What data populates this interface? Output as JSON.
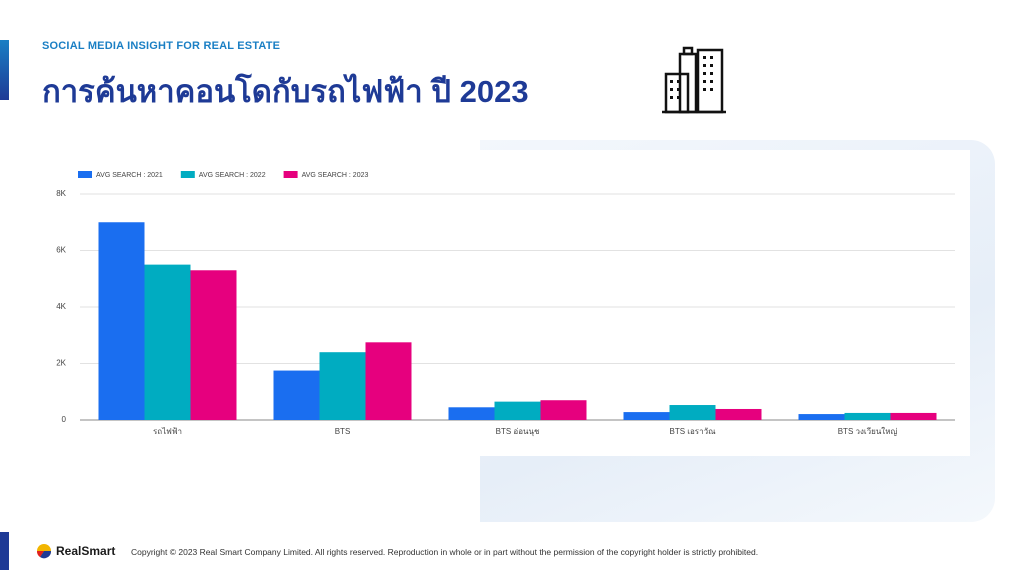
{
  "header": {
    "subtitle": "SOCIAL MEDIA INSIGHT FOR REAL ESTATE",
    "title": "การค้นหาคอนโดกับรถไฟฟ้า ปี 2023"
  },
  "chart_data": {
    "type": "bar",
    "categories": [
      "รถไฟฟ้า",
      "BTS",
      "BTS อ่อนนุช",
      "BTS เอราวัณ",
      "BTS วงเวียนใหญ่"
    ],
    "series": [
      {
        "name": "AVG SEARCH : 2021",
        "color": "#1a6ef0",
        "values": [
          7000,
          1750,
          450,
          280,
          210
        ]
      },
      {
        "name": "AVG SEARCH : 2022",
        "color": "#00acc1",
        "values": [
          5500,
          2400,
          650,
          530,
          250
        ]
      },
      {
        "name": "AVG SEARCH : 2023",
        "color": "#e6007e",
        "values": [
          5300,
          2750,
          700,
          390,
          250
        ]
      }
    ],
    "ylim": [
      0,
      8000
    ],
    "yticks": [
      0,
      {
        "value": 2000,
        "label": "2K"
      },
      {
        "value": 4000,
        "label": "4K"
      },
      {
        "value": 6000,
        "label": "6K"
      },
      {
        "value": 8000,
        "label": "8K"
      }
    ],
    "grid": true,
    "legend": "top-left"
  },
  "footer": {
    "brand": "RealSmart",
    "copyright": "Copyright © 2023 Real Smart Company Limited. All rights reserved. Reproduction in whole  or in part without the permission of the copyright holder is strictly prohibited."
  }
}
